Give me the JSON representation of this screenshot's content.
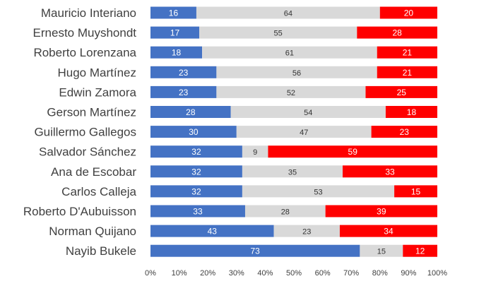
{
  "chart_data": {
    "type": "bar",
    "orientation": "horizontal",
    "stacked": true,
    "percent_stacked": true,
    "categories": [
      "Mauricio Interiano",
      "Ernesto Muyshondt",
      "Roberto Lorenzana",
      "Hugo Martínez",
      "Edwin Zamora",
      "Gerson Martínez",
      "Guillermo Gallegos",
      "Salvador Sánchez",
      "Ana de Escobar",
      "Carlos Calleja",
      "Roberto D'Aubuisson",
      "Norman Quijano",
      "Nayib Bukele"
    ],
    "series": [
      {
        "color": "#4472C4",
        "values": [
          16,
          17,
          18,
          23,
          23,
          28,
          30,
          32,
          32,
          32,
          33,
          43,
          73
        ]
      },
      {
        "color": "#D9D9D9",
        "values": [
          64,
          55,
          61,
          56,
          52,
          54,
          47,
          9,
          35,
          53,
          28,
          23,
          15
        ]
      },
      {
        "color": "#FF0000",
        "values": [
          20,
          28,
          21,
          21,
          25,
          18,
          23,
          59,
          33,
          15,
          39,
          34,
          12
        ]
      }
    ],
    "xlim": [
      0,
      100
    ],
    "x_ticks": [
      "0%",
      "10%",
      "20%",
      "30%",
      "40%",
      "50%",
      "60%",
      "70%",
      "80%",
      "90%",
      "100%"
    ],
    "data_labels": true,
    "legend": "none",
    "grid": false
  }
}
